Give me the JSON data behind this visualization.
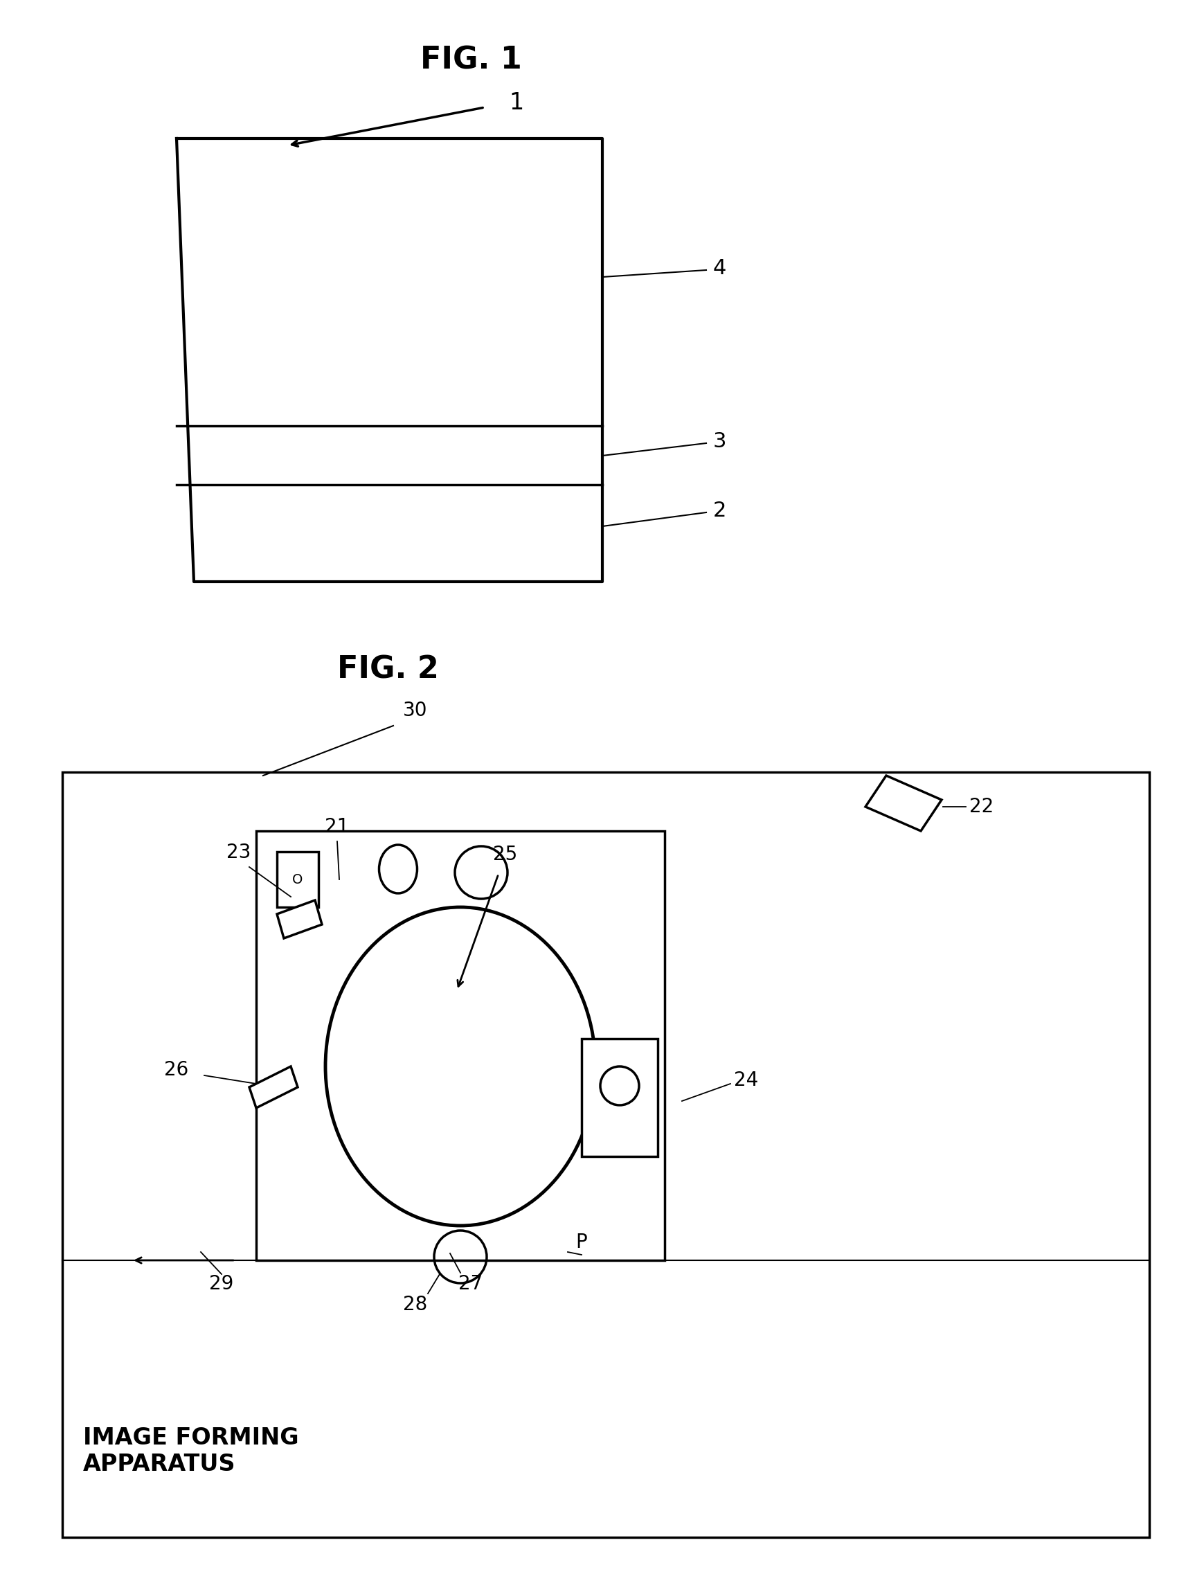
{
  "fig1_title": "FIG. 1",
  "fig2_title": "FIG. 2",
  "fig1_label_1": "1",
  "fig1_label_2": "2",
  "fig1_label_3": "3",
  "fig1_label_4": "4",
  "fig2_label_30": "30",
  "fig2_label_21": "21",
  "fig2_label_22": "22",
  "fig2_label_23": "23",
  "fig2_label_24": "24",
  "fig2_label_25": "25",
  "fig2_label_26": "26",
  "fig2_label_27": "27",
  "fig2_label_28": "28",
  "fig2_label_29": "29",
  "fig2_label_P": "P",
  "fig2_label_IFA": "IMAGE FORMING\nAPPARATUS",
  "background_color": "#ffffff",
  "line_color": "#000000",
  "font_size_title": 32,
  "font_size_label": 20
}
